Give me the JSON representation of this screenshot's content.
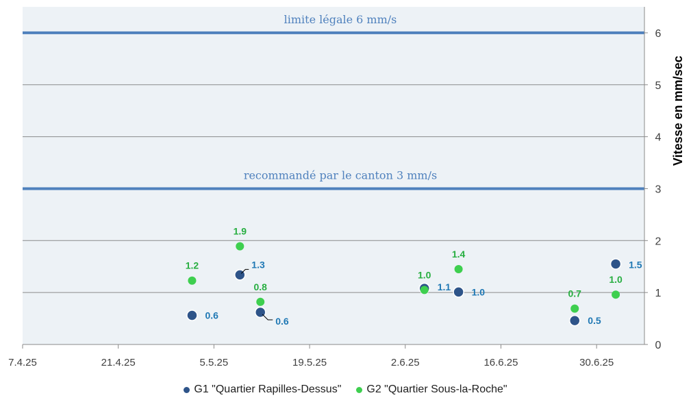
{
  "chart_data": {
    "type": "scatter",
    "title": "",
    "xlabel": "",
    "ylabel": "Vitesse en mm/sec",
    "x_tick_labels": [
      "7.4.25",
      "21.4.25",
      "5.5.25",
      "19.5.25",
      "2.6.25",
      "16.6.25",
      "30.6.25"
    ],
    "x_tick_values": [
      0,
      14,
      28,
      42,
      56,
      70,
      84
    ],
    "xlim": [
      0,
      91
    ],
    "ylim": [
      0,
      6.5
    ],
    "y_ticks": [
      0,
      1,
      2,
      3,
      4,
      5,
      6
    ],
    "grid": "horizontal",
    "legend_position": "bottom",
    "reference_lines": [
      {
        "value": 6,
        "label": "limite légale 6 mm/s",
        "color": "#4f81bd"
      },
      {
        "value": 3,
        "label": "recommandé par le canton 3 mm/s",
        "color": "#4f81bd"
      }
    ],
    "series": [
      {
        "name": "G1 \"Quartier Rapilles-Dessus\"",
        "color": "#2e5489",
        "label_color": "#1f78b4",
        "x": [
          24.8,
          31.8,
          34.8,
          58.8,
          63.8,
          80.8,
          86.8
        ],
        "values": [
          0.56,
          1.34,
          0.62,
          1.08,
          1.01,
          0.46,
          1.55
        ],
        "labels": [
          "0.6",
          "1.3",
          "0.6",
          "1.1",
          "1.0",
          "0.5",
          "1.5"
        ]
      },
      {
        "name": "G2 \"Quartier Sous-la-Roche\"",
        "color": "#3ecf4f",
        "label_color": "#27ae40",
        "x": [
          24.8,
          31.8,
          34.8,
          58.8,
          63.8,
          80.8,
          86.8
        ],
        "values": [
          1.23,
          1.89,
          0.82,
          1.05,
          1.45,
          0.69,
          0.96
        ],
        "labels": [
          "1.2",
          "1.9",
          "0.8",
          "1.0",
          "1.4",
          "0.7",
          "1.0"
        ]
      }
    ]
  }
}
